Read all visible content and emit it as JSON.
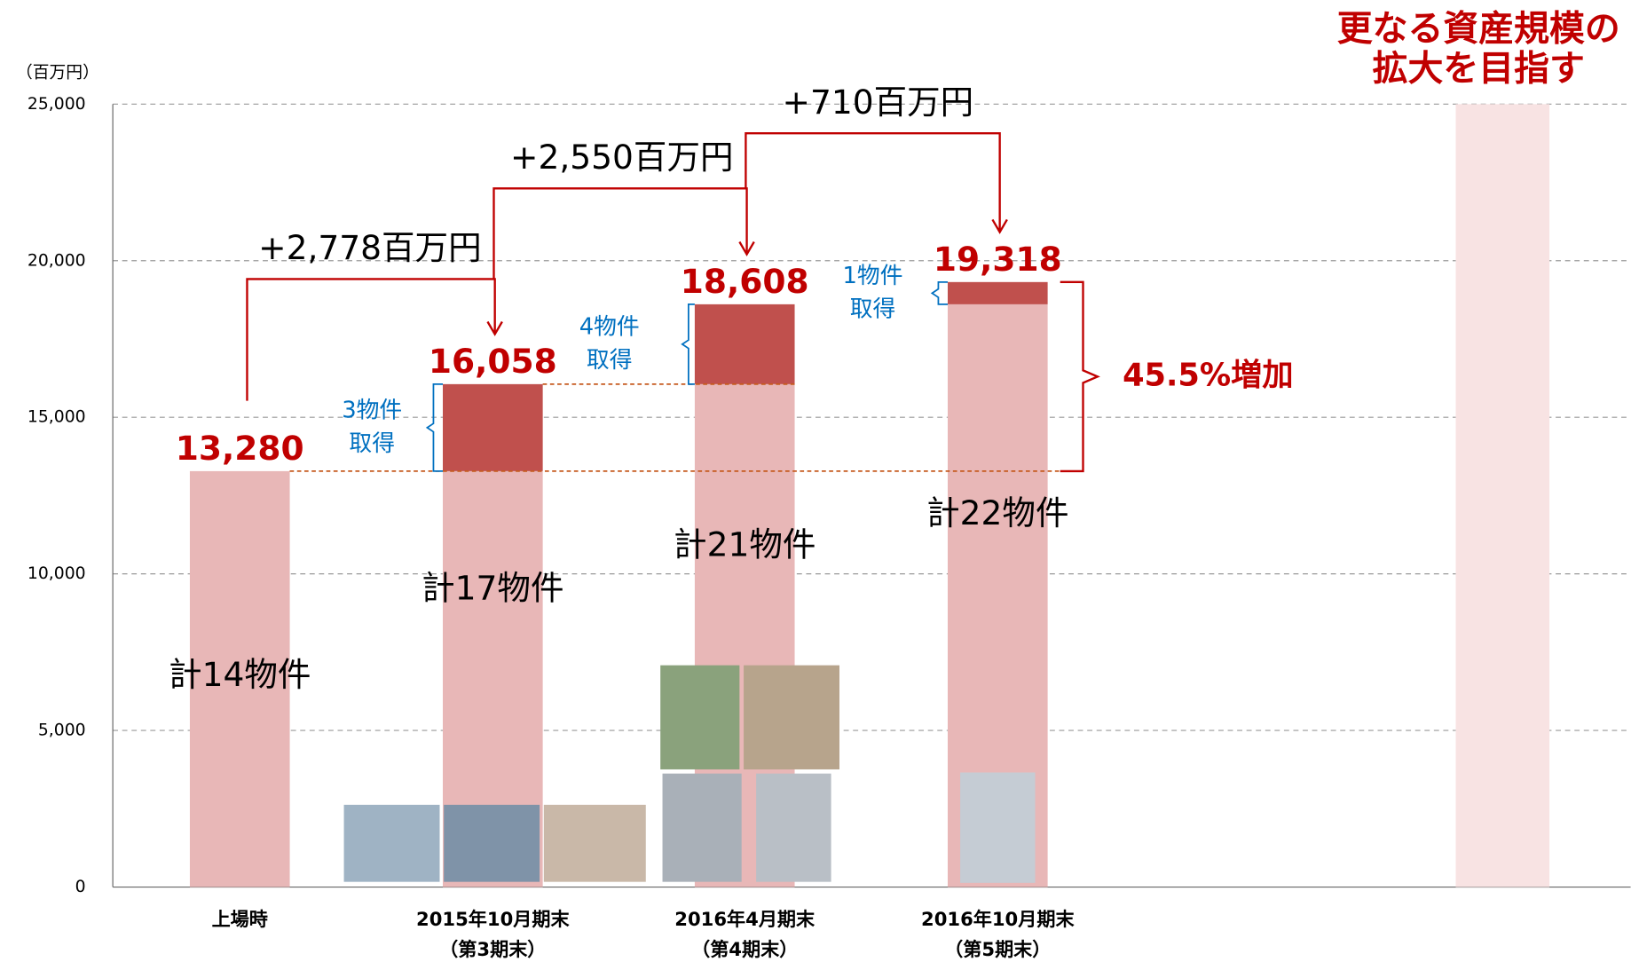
{
  "chart_data": {
    "type": "bar",
    "title_lines": [
      "更なる資産規模の",
      "拡大を目指す"
    ],
    "unit_label": "（百万円）",
    "categories": [
      "上場時",
      "2015年10月期末",
      "2016年4月期末",
      "2016年10月期末",
      null
    ],
    "category_sublabels": [
      null,
      "（第3期末）",
      "（第4期末）",
      "（第5期末）",
      null
    ],
    "series": [
      {
        "color": "#e8b7b7",
        "values": [
          13280,
          13280,
          16058,
          18608,
          null
        ]
      },
      {
        "color": "#c0504d",
        "values": [
          null,
          2778,
          2550,
          710,
          null
        ],
        "value_labels": [
          null,
          "+2,778百万円",
          "+2,550百万円",
          "+710百万円",
          null
        ]
      },
      {
        "color": "#f8e3e3",
        "values": [
          null,
          null,
          null,
          null,
          25000
        ]
      }
    ],
    "totals": {
      "values": [
        13280,
        16058,
        18608,
        19318
      ],
      "value_labels": [
        "13,280",
        "16,058",
        "18,608",
        "19,318"
      ]
    },
    "count_labels": [
      "計14物件",
      "計17物件",
      "計21物件",
      "計22物件"
    ],
    "acquisition_notes": [
      null,
      [
        "3物件",
        "取得"
      ],
      [
        "4物件",
        "取得"
      ],
      [
        "1物件",
        "取得"
      ]
    ],
    "growth_label": "45.5%増加",
    "ylim": [
      0,
      25000
    ],
    "yticks": [
      0,
      {
        "value": 5000,
        "label": "5,000"
      },
      {
        "value": 10000,
        "label": "10,000"
      },
      {
        "value": 15000,
        "label": "15,000"
      },
      {
        "value": 20000,
        "label": "20,000"
      },
      {
        "value": 25000,
        "label": "25,000"
      }
    ],
    "grid": true
  }
}
